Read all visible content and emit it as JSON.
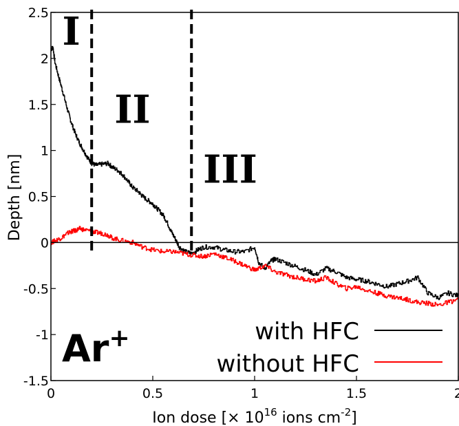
{
  "chart_data": {
    "type": "line",
    "xlabel_main": "Ion dose [× 10",
    "xlabel_exp1": "16",
    "xlabel_mid": " ions cm",
    "xlabel_exp2": "-2",
    "xlabel_end": "]",
    "ylabel": "Depth [nm]",
    "xlim": [
      0,
      2
    ],
    "ylim": [
      -1.5,
      2.5
    ],
    "xticks": [
      {
        "value": 0,
        "label": "0"
      },
      {
        "value": 0.5,
        "label": "0.5"
      },
      {
        "value": 1,
        "label": "1"
      },
      {
        "value": 1.5,
        "label": "1.5"
      },
      {
        "value": 2,
        "label": "2"
      }
    ],
    "yticks": [
      {
        "value": 2.5,
        "label": "2.5"
      },
      {
        "value": 2,
        "label": "2"
      },
      {
        "value": 1.5,
        "label": "1.5"
      },
      {
        "value": 1,
        "label": "1"
      },
      {
        "value": 0.5,
        "label": "0.5"
      },
      {
        "value": 0,
        "label": "0"
      },
      {
        "value": -0.5,
        "label": "-0.5"
      },
      {
        "value": -1,
        "label": "-1"
      },
      {
        "value": -1.5,
        "label": "-1.5"
      }
    ],
    "zero_line": 0,
    "region_boundaries": [
      0.2,
      0.69
    ],
    "regions": [
      {
        "label": "I",
        "x": 0.1,
        "y": 2.15
      },
      {
        "label": "II",
        "x": 0.4,
        "y": 1.3
      },
      {
        "label": "III",
        "x": 0.88,
        "y": 0.65
      }
    ],
    "species_base": "Ar",
    "species_sup": "+",
    "legend_position": "bottom-right",
    "series": [
      {
        "name": "with HFC",
        "color": "#000000",
        "x": [
          0,
          0.01,
          0.02,
          0.04,
          0.06,
          0.08,
          0.1,
          0.12,
          0.14,
          0.16,
          0.18,
          0.2,
          0.22,
          0.25,
          0.28,
          0.3,
          0.33,
          0.35,
          0.38,
          0.4,
          0.43,
          0.45,
          0.48,
          0.5,
          0.52,
          0.55,
          0.57,
          0.59,
          0.61,
          0.63,
          0.66,
          0.69,
          0.72,
          0.75,
          0.8,
          0.85,
          0.9,
          0.95,
          1.0,
          1.02,
          1.05,
          1.08,
          1.1,
          1.15,
          1.2,
          1.25,
          1.3,
          1.35,
          1.4,
          1.45,
          1.5,
          1.55,
          1.6,
          1.65,
          1.7,
          1.75,
          1.8,
          1.85,
          1.9,
          1.95,
          2.0
        ],
        "y": [
          2.1,
          2.12,
          1.95,
          1.78,
          1.62,
          1.45,
          1.3,
          1.18,
          1.08,
          1.0,
          0.92,
          0.86,
          0.84,
          0.85,
          0.86,
          0.82,
          0.78,
          0.74,
          0.66,
          0.6,
          0.55,
          0.5,
          0.45,
          0.42,
          0.37,
          0.3,
          0.22,
          0.12,
          0.04,
          -0.05,
          -0.1,
          -0.12,
          -0.08,
          -0.05,
          -0.05,
          -0.08,
          -0.1,
          -0.1,
          -0.05,
          -0.22,
          -0.28,
          -0.2,
          -0.18,
          -0.22,
          -0.26,
          -0.3,
          -0.35,
          -0.28,
          -0.32,
          -0.38,
          -0.4,
          -0.42,
          -0.45,
          -0.48,
          -0.45,
          -0.42,
          -0.38,
          -0.55,
          -0.6,
          -0.55,
          -0.58
        ]
      },
      {
        "name": "without HFC",
        "color": "#ff0000",
        "x": [
          0,
          0.02,
          0.05,
          0.08,
          0.1,
          0.12,
          0.14,
          0.16,
          0.2,
          0.22,
          0.25,
          0.28,
          0.3,
          0.35,
          0.4,
          0.45,
          0.5,
          0.55,
          0.6,
          0.65,
          0.7,
          0.75,
          0.8,
          0.85,
          0.9,
          0.95,
          1.0,
          1.05,
          1.1,
          1.15,
          1.2,
          1.25,
          1.3,
          1.35,
          1.4,
          1.45,
          1.5,
          1.55,
          1.6,
          1.65,
          1.7,
          1.75,
          1.8,
          1.85,
          1.9,
          1.95,
          2.0
        ],
        "y": [
          0,
          0.02,
          0.05,
          0.1,
          0.12,
          0.13,
          0.15,
          0.14,
          0.12,
          0.11,
          0.1,
          0.08,
          0.05,
          0.02,
          0.0,
          -0.05,
          -0.08,
          -0.1,
          -0.1,
          -0.12,
          -0.14,
          -0.15,
          -0.12,
          -0.16,
          -0.2,
          -0.25,
          -0.3,
          -0.25,
          -0.32,
          -0.35,
          -0.38,
          -0.4,
          -0.42,
          -0.38,
          -0.45,
          -0.5,
          -0.48,
          -0.52,
          -0.55,
          -0.58,
          -0.6,
          -0.62,
          -0.65,
          -0.66,
          -0.68,
          -0.65,
          -0.62
        ]
      }
    ]
  }
}
